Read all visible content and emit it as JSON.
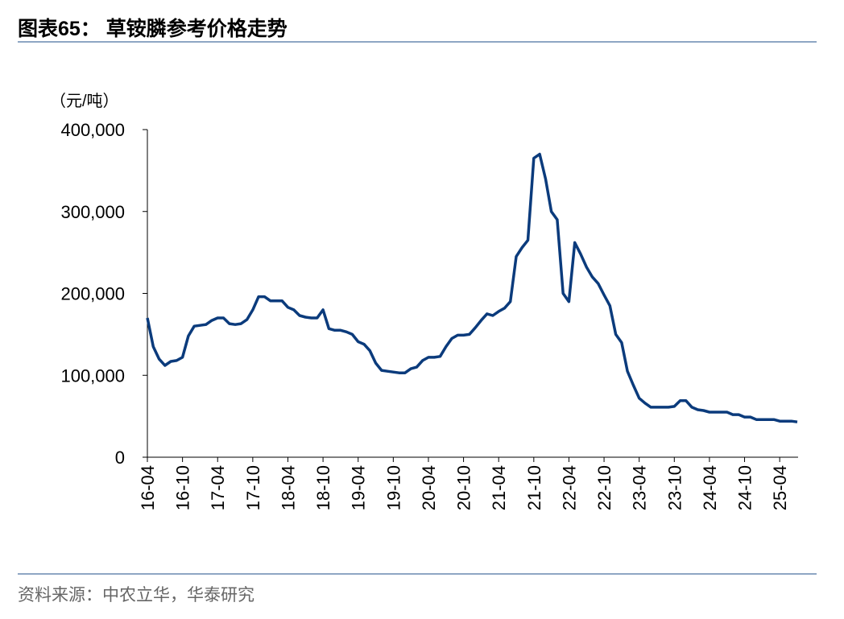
{
  "chart_data": {
    "type": "line",
    "title": "图表65：  草铵膦参考价格走势",
    "y_label": "（元/吨）",
    "source": "资料来源：中农立华，华泰研究",
    "color": "#0b3b7c",
    "categories": [
      "16-04",
      null,
      null,
      null,
      null,
      null,
      "16-10",
      null,
      null,
      null,
      null,
      null,
      "17-04",
      null,
      null,
      null,
      null,
      null,
      "17-10",
      null,
      null,
      null,
      null,
      null,
      "18-04",
      null,
      null,
      null,
      null,
      null,
      "18-10",
      null,
      null,
      null,
      null,
      null,
      "19-04",
      null,
      null,
      null,
      null,
      null,
      "19-10",
      null,
      null,
      null,
      null,
      null,
      "20-04",
      null,
      null,
      null,
      null,
      null,
      "20-10",
      null,
      null,
      null,
      null,
      null,
      "21-04",
      null,
      null,
      null,
      null,
      null,
      "21-10",
      null,
      null,
      null,
      null,
      null,
      "22-04",
      null,
      null,
      null,
      null,
      null,
      "22-10",
      null,
      null,
      null,
      null,
      null,
      "23-04",
      null,
      null,
      null,
      null,
      null,
      "23-10",
      null,
      null,
      null,
      null,
      null,
      "24-04",
      null,
      null,
      null,
      null,
      null,
      "24-10",
      null,
      null,
      null,
      null,
      null,
      "25-04",
      null,
      null,
      null
    ],
    "values": [
      170000,
      135000,
      120000,
      112000,
      117000,
      118000,
      122000,
      148000,
      160000,
      161000,
      162000,
      167000,
      170000,
      170000,
      163000,
      162000,
      163000,
      168000,
      180000,
      196000,
      196000,
      191000,
      191000,
      191000,
      183000,
      180000,
      173000,
      171000,
      170000,
      170000,
      180000,
      157000,
      155000,
      155000,
      153000,
      150000,
      141000,
      138000,
      130000,
      115000,
      106000,
      105000,
      104000,
      103000,
      103000,
      108000,
      110000,
      118000,
      122000,
      122000,
      123000,
      135000,
      145000,
      149000,
      149000,
      150000,
      158000,
      167000,
      175000,
      173000,
      178000,
      182000,
      190000,
      245000,
      256000,
      265000,
      365000,
      370000,
      340000,
      300000,
      290000,
      200000,
      190000,
      262000,
      248000,
      232000,
      220000,
      212000,
      198000,
      185000,
      150000,
      140000,
      105000,
      88000,
      72000,
      66000,
      61000,
      61000,
      61000,
      61000,
      62000,
      69000,
      69000,
      61000,
      58000,
      57000,
      55000,
      55000,
      55000,
      55000,
      52000,
      52000,
      49000,
      49000,
      46000,
      46000,
      46000,
      46000,
      44000,
      44000,
      44000,
      43000
    ],
    "ylim": [
      0,
      400000
    ],
    "yticks": [
      0,
      {
        "value": 100000,
        "label": "100,000"
      },
      {
        "value": 200000,
        "label": "200,000"
      },
      {
        "value": 300000,
        "label": "300,000"
      },
      {
        "value": 400000,
        "label": "400,000"
      }
    ]
  }
}
